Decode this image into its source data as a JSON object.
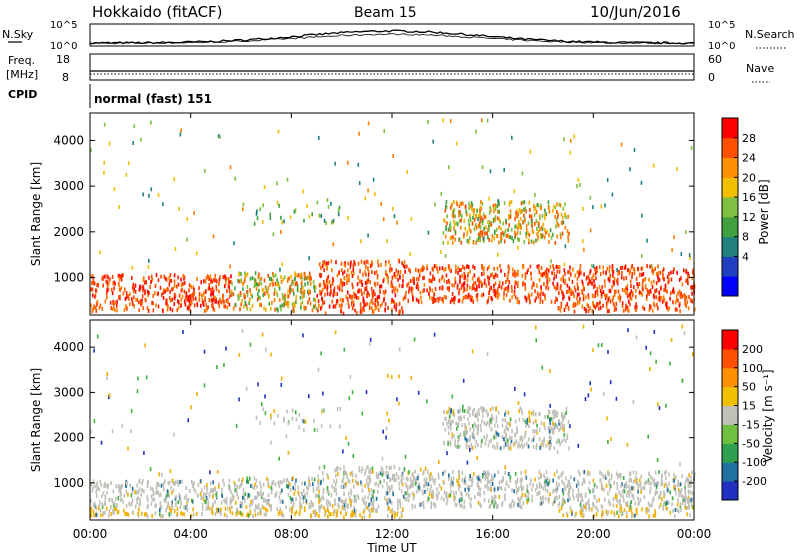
{
  "header": {
    "radar": "Hokkaido (fitACF)",
    "beam": "Beam 15",
    "date": "10/Jun/2016"
  },
  "top_panels": {
    "nsky_label": "N.Sky",
    "nsky_ticks": [
      "10^5",
      "10^0"
    ],
    "nsearch_label": "N.Search",
    "nsearch_ticks": [
      "10^5",
      "10^0"
    ],
    "freq_label": [
      "Freq.",
      "[MHz]"
    ],
    "freq_ticks": [
      "18",
      "8"
    ],
    "nave_label": "Nave",
    "nave_ticks": [
      "60",
      "0"
    ],
    "cpid_label": "CPID",
    "cpid_value": "normal (fast) 151"
  },
  "chart_data": [
    {
      "type": "heatmap",
      "panel": "power",
      "ylabel": "Slant Range [km]",
      "y_ticks": [
        "4000",
        "3000",
        "2000",
        "1000"
      ],
      "y_tick_values": [
        4000,
        3000,
        2000,
        1000
      ],
      "ylim": [
        180,
        4600
      ],
      "xlim_hours": [
        0,
        24
      ],
      "colorbar_label": "Power [dB]",
      "colorbar_ticks": [
        "28",
        "24",
        "20",
        "16",
        "12",
        "8",
        "4"
      ],
      "colorbar_colors": [
        "#0000ff",
        "#2040c0",
        "#208080",
        "#40a040",
        "#80c040",
        "#f0c000",
        "#ff9000",
        "#ff5000",
        "#ff0000"
      ],
      "echo_bands_km": [
        {
          "start_h": 0.0,
          "end_h": 5.6,
          "low": 300,
          "high": 1100,
          "level": "strong"
        },
        {
          "start_h": 5.6,
          "end_h": 9.0,
          "low": 300,
          "high": 1150,
          "level": "medium"
        },
        {
          "start_h": 9.0,
          "end_h": 12.5,
          "low": 250,
          "high": 1400,
          "level": "strong"
        },
        {
          "start_h": 12.5,
          "end_h": 18.5,
          "low": 500,
          "high": 1300,
          "level": "strong"
        },
        {
          "start_h": 18.5,
          "end_h": 24.0,
          "low": 300,
          "high": 1300,
          "level": "strong"
        },
        {
          "start_h": 14.0,
          "end_h": 19.0,
          "low": 1800,
          "high": 2700,
          "level": "medium"
        },
        {
          "start_h": 6.5,
          "end_h": 10.0,
          "low": 2200,
          "high": 2700,
          "level": "weak"
        }
      ]
    },
    {
      "type": "heatmap",
      "panel": "velocity",
      "ylabel": "Slant Range [km]",
      "y_ticks": [
        "4000",
        "3000",
        "2000",
        "1000"
      ],
      "y_tick_values": [
        4000,
        3000,
        2000,
        1000
      ],
      "ylim": [
        180,
        4600
      ],
      "xlim_hours": [
        0,
        24
      ],
      "colorbar_label": "Velocity [m s⁻¹]",
      "colorbar_ticks": [
        "200",
        "100",
        "50",
        "15",
        "-15",
        "-50",
        "-100",
        "-200"
      ],
      "colorbar_colors": [
        "#2030c0",
        "#2070a0",
        "#30a050",
        "#70c040",
        "#c0c0b8",
        "#f0c000",
        "#ff9000",
        "#ff5000",
        "#ff0000"
      ],
      "x_ticks": [
        "00:00",
        "04:00",
        "08:00",
        "12:00",
        "16:00",
        "20:00",
        "00:00"
      ],
      "x_tick_hours": [
        0,
        4,
        8,
        12,
        16,
        20,
        24
      ],
      "xlabel": "Time UT"
    }
  ],
  "colors": {
    "ground_scatter": "#c0c0b8",
    "power_strong": "#ff2000",
    "power_medium": "#ff8000",
    "velocity_orange": "#f0b000",
    "velocity_green": "#40b040"
  }
}
